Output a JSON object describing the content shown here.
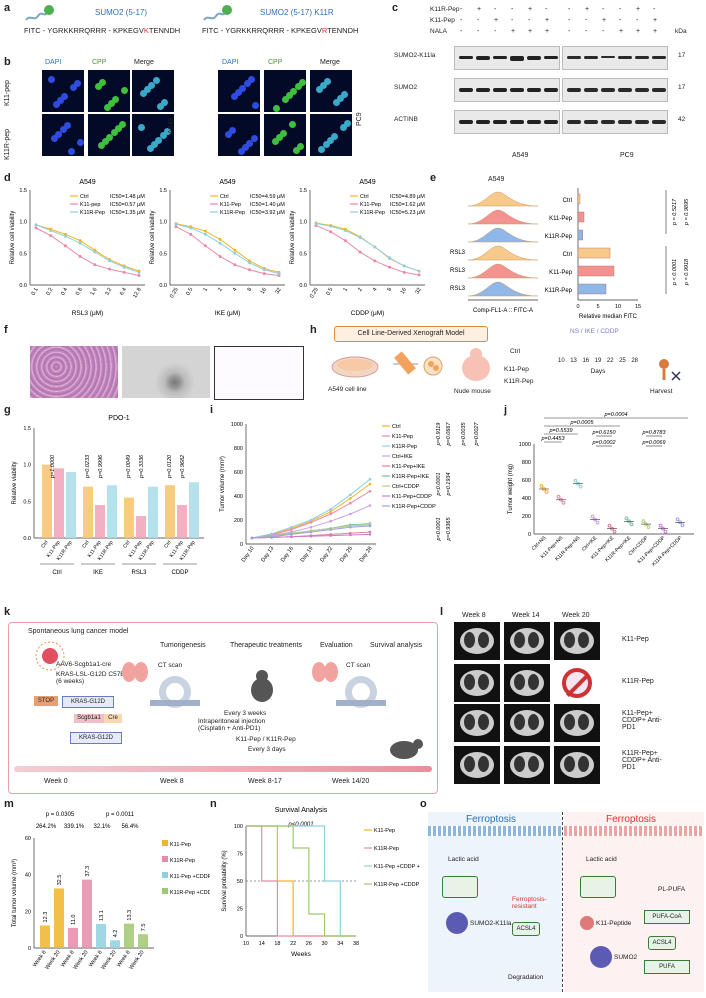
{
  "labels": {
    "a": "a",
    "b": "b",
    "c": "c",
    "d": "d",
    "e": "e",
    "f": "f",
    "g": "g",
    "h": "h",
    "i": "i",
    "j": "j",
    "k": "k",
    "l": "l",
    "m": "m",
    "n": "n",
    "o": "o"
  },
  "panel_a": {
    "left_title": "SUMO2 (5-17)",
    "right_title": "SUMO2 (5-17) K11R",
    "left_seq_prefix": "FITC - YGRKKRRQRRR - KPKEGV",
    "left_seq_mut": "K",
    "left_seq_suffix": "TENNDH",
    "right_seq_prefix": "FITC - YGRKKRRQRRR - KPKEGV",
    "right_seq_mut": "R",
    "right_seq_suffix": "TENNDH"
  },
  "panel_b": {
    "cols": [
      "DAPI",
      "CPP",
      "Merge"
    ],
    "rows": [
      "K11-pep",
      "K11R-pep"
    ],
    "left_cell": "A549",
    "right_cell": "PC9"
  },
  "panel_c": {
    "row_labels": [
      "K11R-Pep",
      "K11-Pep",
      "NALA"
    ],
    "signs": [
      [
        "-",
        "+",
        "-",
        "-",
        "+",
        "-"
      ],
      [
        "-",
        "-",
        "+",
        "-",
        "-",
        "+"
      ],
      [
        "-",
        "-",
        "-",
        "+",
        "+",
        "+"
      ]
    ],
    "kda": "kDa",
    "blots": [
      {
        "name": "SUMO2-K11la",
        "kda": "17"
      },
      {
        "name": "SUMO2",
        "kda": "17"
      },
      {
        "name": "ACTINB",
        "kda": "42"
      }
    ],
    "cells": [
      "A549",
      "PC9"
    ]
  },
  "panel_d": {
    "title": "A549",
    "ylabel": "Relative cell viability",
    "legend": [
      "Ctrl",
      "K11-pep",
      "K11R-Pep"
    ]
  },
  "panel_e": {
    "title": "A549",
    "row_labels": [
      "Ctrl",
      "K11-Pep",
      "K11R-Pep",
      "Ctrl",
      "K11-Pep",
      "K11R-Pep"
    ],
    "rsl3": [
      "RSL3",
      "RSL3",
      "RSL3"
    ],
    "xlabel": "Comp-FL1-A :: FITC-A",
    "bar_xlabel": "Relative median FITC",
    "pvals": [
      "p = 0.5217",
      "p = 0.9895",
      "p < 0.0001",
      "p = 0.9918"
    ],
    "ticks": [
      "0",
      "5",
      "10",
      "15"
    ]
  },
  "panel_h": {
    "title": "Cell Line-Derived Xenograft Model",
    "cell_line": "A549 cell line",
    "mouse": "Nude mouse",
    "groups": [
      "Ctrl",
      "K11-Pep",
      "K11R-Pep"
    ],
    "treat": "NS / IKE / CDDP",
    "days": [
      "10",
      "13",
      "16",
      "19",
      "22",
      "25",
      "28"
    ],
    "days_label": "Days",
    "harvest": "Harvest"
  },
  "panel_g": {
    "title": "PDO-1",
    "ylabel": "Relative viability",
    "groups": [
      "Ctrl",
      "IKE",
      "RSL3",
      "CDDP"
    ],
    "pvals": [
      "p=1.0000",
      "p=0.0233",
      "p=0.9996",
      "p=0.0049",
      "p=0.3336",
      "p=0.0120",
      "p=0.9682"
    ]
  },
  "panel_i": {
    "ylabel": "Tumor volume (mm³)",
    "legend": [
      "Ctrl",
      "K11-Pep",
      "K11R-Pep",
      "Ctrl+IKE",
      "K11-Pep+IKE",
      "K11R-Pep+IKE",
      "Ctrl+CDDP",
      "K11-Pep+CDDP",
      "K11R-Pep+CDDP"
    ],
    "pvals": [
      "p=0.9119",
      "p=0.0667",
      "p=0.0035",
      "p=0.0027",
      "p<0.0001",
      "p=0.1934",
      "p<0.0001",
      "p=0.9365"
    ]
  },
  "panel_j": {
    "ylabel": "Tumor weight (mg)",
    "pvals": [
      "p=0.0004",
      "p=0.0005",
      "p=0.5539",
      "p=0.4453",
      "p=0.6150",
      "p=0.0002",
      "p=0.8783",
      "p=0.0069"
    ]
  },
  "panel_k": {
    "title": "Spontaneous lung cancer model",
    "virus": "AAV6-Scgb1a1-cre",
    "mouse": "KRAS-LSL-G12D C57BL/6 (6 weeks)",
    "steps": [
      "Tumorigenesis",
      "Therapeutic treatments",
      "Evaluation",
      "Survival analysis"
    ],
    "ct": "CT scan",
    "every3w": "Every 3 weeks",
    "ip": "Intraperitoneal injection (Cisplatin + Anti-PD1)",
    "peps": "K11-Pep / K11R-Pep",
    "every3d": "Every 3 days",
    "weeks": [
      "Week 0",
      "Week 8",
      "Week 8-17",
      "Week 14/20"
    ],
    "stop": "STOP",
    "kras": "KRAS-G12D",
    "scgb": "Scgb1a1",
    "cre": "Cre"
  },
  "panel_l": {
    "cols": [
      "Week 8",
      "Week 14",
      "Week 20"
    ],
    "rows": [
      "K11-Pep",
      "K11R-Pep",
      "K11-Pep+ CDDP+ Anti-PD1",
      "K11R-Pep+ CDDP+ Anti-PD1"
    ]
  },
  "panel_m": {
    "ylabel": "Total tumor volume (mm³)",
    "p1": "p = 0.0305",
    "p2": "p = 0.0011",
    "pct": [
      "264.2%",
      "339.1%",
      "32.1%",
      "56.4%"
    ],
    "vals": [
      "12.3",
      "32.5",
      "11.0",
      "37.3",
      "13.1",
      "4.2",
      "13.3",
      "7.5"
    ],
    "legend": [
      "K11-Pep",
      "K11R-Pep",
      "K11-Pep +CDDP +Anti-PD1",
      "K11R-Pep +CDDP +Anti-PD1"
    ]
  },
  "panel_n": {
    "title": "Survival Analysis",
    "p": "p<0.0001",
    "ylabel": "Survival probability (%)",
    "xlabel": "Weeks",
    "legend": [
      "K11-Pep",
      "K11R-Pep",
      "K11-Pep +CDDP +Anti-PD1",
      "K11R-Pep +CDDP +Anti-PD1"
    ]
  },
  "panel_o": {
    "left_title": "Ferroptosis",
    "right_title": "Ferroptosis",
    "lactic1": "Lactic acid",
    "lactic2": "Lactic acid",
    "resistant": "Ferroptosis-resistant",
    "sumo": "SUMO2-K11la",
    "acsl4": "ACSL4",
    "degradation": "Degradation",
    "k11": "K11-Peptide",
    "sumo2": "SUMO2",
    "pufa_coa": "PUFA-CoA",
    "acsl4b": "ACSL4",
    "pufa": "PUFA",
    "pl_pufa": "PL-PUFA"
  },
  "chart_data": [
    {
      "type": "line",
      "title": "A549",
      "xlabel": "RSL3 (μM)",
      "ylabel": "Relative cell viability",
      "categories": [
        "0.1",
        "0.2",
        "0.4",
        "0.8",
        "1.6",
        "3.2",
        "6.4",
        "12.8"
      ],
      "ylim": [
        0,
        1.5
      ],
      "series": [
        {
          "name": "Ctrl",
          "values": [
            0.95,
            0.88,
            0.8,
            0.7,
            0.55,
            0.4,
            0.3,
            0.22
          ],
          "label": "IC50=1.48 μM"
        },
        {
          "name": "K11-pep",
          "values": [
            0.9,
            0.78,
            0.62,
            0.45,
            0.32,
            0.25,
            0.2,
            0.15
          ],
          "label": "IC50=0.57 μM"
        },
        {
          "name": "K11R-Pep",
          "values": [
            0.95,
            0.86,
            0.77,
            0.66,
            0.52,
            0.38,
            0.28,
            0.2
          ],
          "label": "IC50=1.35 μM"
        }
      ]
    },
    {
      "type": "line",
      "title": "A549",
      "xlabel": "IKE (μM)",
      "ylabel": "Relative cell viability",
      "categories": [
        "0.25",
        "0.5",
        "1",
        "2",
        "4",
        "8",
        "16",
        "32"
      ],
      "ylim": [
        0,
        1.5
      ],
      "series": [
        {
          "name": "Ctrl",
          "values": [
            0.97,
            0.92,
            0.85,
            0.72,
            0.55,
            0.38,
            0.26,
            0.2
          ],
          "label": "IC50=4.59 μM"
        },
        {
          "name": "K11-Pep",
          "values": [
            0.92,
            0.8,
            0.62,
            0.45,
            0.32,
            0.24,
            0.18,
            0.15
          ],
          "label": "IC50=1.40 μM"
        },
        {
          "name": "K11R-Pep",
          "values": [
            0.96,
            0.9,
            0.8,
            0.66,
            0.5,
            0.35,
            0.24,
            0.18
          ],
          "label": "IC50=3.92 μM"
        }
      ]
    },
    {
      "type": "line",
      "title": "A549",
      "xlabel": "CDDP (μM)",
      "ylabel": "Relative cell viability",
      "categories": [
        "0.25",
        "0.5",
        "1",
        "2",
        "4",
        "8",
        "16",
        "32"
      ],
      "ylim": [
        0,
        1.5
      ],
      "series": [
        {
          "name": "Ctrl",
          "values": [
            0.98,
            0.94,
            0.88,
            0.76,
            0.6,
            0.42,
            0.3,
            0.22
          ],
          "label": "IC50=4.89 μM"
        },
        {
          "name": "K11-Pep",
          "values": [
            0.94,
            0.84,
            0.7,
            0.52,
            0.38,
            0.28,
            0.2,
            0.16
          ],
          "label": "IC50=1.62 μM"
        },
        {
          "name": "K11R-Pep",
          "values": [
            0.97,
            0.93,
            0.86,
            0.75,
            0.6,
            0.43,
            0.3,
            0.22
          ],
          "label": "IC50=5.23 μM"
        }
      ]
    },
    {
      "type": "bar",
      "title": "PDO-1",
      "ylabel": "Relative viability",
      "categories": [
        "Ctrl",
        "K11-Pep",
        "K11R-Pep",
        "Ctrl",
        "K11-Pep",
        "K11R-Pep",
        "Ctrl",
        "K11-Pep",
        "K11R-Pep",
        "Ctrl",
        "K11-Pep",
        "K11R-Pep"
      ],
      "values": [
        1.0,
        0.95,
        0.9,
        0.7,
        0.45,
        0.72,
        0.55,
        0.3,
        0.7,
        0.72,
        0.45,
        0.76
      ],
      "ylim": [
        0,
        1.5
      ]
    },
    {
      "type": "bar",
      "ylabel": "Relative median FITC",
      "xlim": [
        0,
        15
      ],
      "categories": [
        "Ctrl",
        "K11-Pep",
        "K11R-Pep",
        "Ctrl",
        "K11-Pep",
        "K11R-Pep"
      ],
      "values": [
        0.5,
        1.5,
        1.2,
        8,
        9,
        7
      ]
    },
    {
      "type": "line",
      "ylabel": "Tumor volume (mm³)",
      "ylim": [
        0,
        1000
      ],
      "categories": [
        "Day 10",
        "Day 13",
        "Day 16",
        "Day 19",
        "Day 22",
        "Day 25",
        "Day 28"
      ],
      "series": [
        {
          "name": "Ctrl",
          "values": [
            50,
            80,
            130,
            190,
            270,
            380,
            500
          ]
        },
        {
          "name": "K11-Pep",
          "values": [
            50,
            75,
            120,
            180,
            250,
            340,
            440
          ]
        },
        {
          "name": "K11R-Pep",
          "values": [
            50,
            85,
            140,
            200,
            290,
            410,
            540
          ]
        },
        {
          "name": "Ctrl+IKE",
          "values": [
            50,
            70,
            100,
            140,
            190,
            250,
            320
          ]
        },
        {
          "name": "K11-Pep+IKE",
          "values": [
            50,
            55,
            60,
            70,
            80,
            90,
            100
          ]
        },
        {
          "name": "K11R-Pep+IKE",
          "values": [
            50,
            65,
            90,
            110,
            130,
            160,
            170
          ]
        },
        {
          "name": "Ctrl+CDDP",
          "values": [
            50,
            65,
            85,
            110,
            130,
            150,
            160
          ]
        },
        {
          "name": "K11-Pep+CDDP",
          "values": [
            50,
            55,
            60,
            65,
            70,
            75,
            80
          ]
        },
        {
          "name": "K11R-Pep+CDDP",
          "values": [
            50,
            60,
            80,
            100,
            120,
            140,
            150
          ]
        }
      ]
    },
    {
      "type": "scatter",
      "ylabel": "Tumor weight (mg)",
      "ylim": [
        0,
        1000
      ],
      "categories": [
        "Ctrl+NS",
        "K11-Pep+NS",
        "K11R-Pep+NS",
        "Ctrl+IKE",
        "K11-Pep+IKE",
        "K11R-Pep+IKE",
        "Ctrl+CDDP",
        "K11-Pep+CDDP",
        "K11R-Pep+CDDP"
      ],
      "values": [
        500,
        380,
        560,
        160,
        60,
        140,
        110,
        60,
        130
      ]
    },
    {
      "type": "bar",
      "ylabel": "Total tumor volume (mm³)",
      "ylim": [
        0,
        60
      ],
      "categories": [
        "Week 8",
        "Week 20",
        "Week 8",
        "Week 20",
        "Week 8",
        "Week 20",
        "Week 8",
        "Week 20"
      ],
      "values": [
        12.3,
        32.5,
        11.0,
        37.3,
        13.1,
        4.2,
        13.3,
        7.5
      ]
    },
    {
      "type": "line",
      "title": "Survival Analysis",
      "xlabel": "Weeks",
      "ylabel": "Survival probability (%)",
      "ylim": [
        0,
        100
      ],
      "x": [
        10,
        14,
        18,
        22,
        26,
        30,
        34,
        38
      ],
      "series": [
        {
          "name": "K11-Pep",
          "values": [
            100,
            100,
            50,
            0,
            0,
            0,
            0,
            0
          ]
        },
        {
          "name": "K11R-Pep",
          "values": [
            100,
            50,
            0,
            0,
            0,
            0,
            0,
            0
          ]
        },
        {
          "name": "K11-Pep +CDDP +Anti-PD1",
          "values": [
            100,
            100,
            100,
            100,
            100,
            50,
            0,
            0
          ]
        },
        {
          "name": "K11R-Pep +CDDP +Anti-PD1",
          "values": [
            100,
            100,
            100,
            80,
            20,
            0,
            0,
            0
          ]
        }
      ]
    }
  ]
}
